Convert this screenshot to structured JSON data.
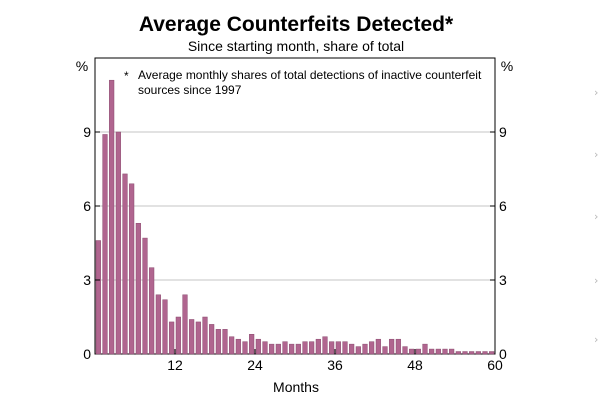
{
  "chart_data": {
    "type": "bar",
    "title": "Average Counterfeits Detected*",
    "subtitle": "Since starting month, share of total",
    "xlabel": "Months",
    "ylabel_left": "%",
    "ylabel_right": "%",
    "footnote_marker": "*",
    "footnote_line1": "Average monthly shares of total detections of inactive counterfeit",
    "footnote_line2": "sources since 1997",
    "xlim": [
      0,
      60
    ],
    "ylim": [
      0,
      12
    ],
    "x_ticks": [
      {
        "value": 12,
        "label": "12"
      },
      {
        "value": 24,
        "label": "24"
      },
      {
        "value": 36,
        "label": "36"
      },
      {
        "value": 48,
        "label": "48"
      },
      {
        "value": 60,
        "label": "60"
      }
    ],
    "y_ticks": [
      {
        "value": 0,
        "label": "0"
      },
      {
        "value": 3,
        "label": "3"
      },
      {
        "value": 6,
        "label": "6"
      },
      {
        "value": 9,
        "label": "9"
      }
    ],
    "gridlines": [
      3,
      6,
      9
    ],
    "bar_color": "#b0658f",
    "bar_edge_color": "#8a4a6e",
    "months": [
      1,
      2,
      3,
      4,
      5,
      6,
      7,
      8,
      9,
      10,
      11,
      12,
      13,
      14,
      15,
      16,
      17,
      18,
      19,
      20,
      21,
      22,
      23,
      24,
      25,
      26,
      27,
      28,
      29,
      30,
      31,
      32,
      33,
      34,
      35,
      36,
      37,
      38,
      39,
      40,
      41,
      42,
      43,
      44,
      45,
      46,
      47,
      48,
      49,
      50,
      51,
      52,
      53,
      54,
      55,
      56,
      57,
      58,
      59,
      60
    ],
    "values": [
      4.6,
      8.9,
      11.1,
      9.0,
      7.3,
      6.9,
      5.3,
      4.7,
      3.5,
      2.4,
      2.2,
      1.3,
      1.5,
      2.4,
      1.4,
      1.3,
      1.5,
      1.2,
      1.0,
      1.0,
      0.7,
      0.6,
      0.5,
      0.8,
      0.6,
      0.5,
      0.4,
      0.4,
      0.5,
      0.4,
      0.4,
      0.5,
      0.5,
      0.6,
      0.7,
      0.5,
      0.5,
      0.5,
      0.4,
      0.3,
      0.4,
      0.5,
      0.6,
      0.3,
      0.6,
      0.6,
      0.3,
      0.2,
      0.2,
      0.4,
      0.2,
      0.2,
      0.2,
      0.2,
      0.1,
      0.1,
      0.1,
      0.1,
      0.1,
      0.1
    ]
  },
  "side_nav": {
    "chevron_glyph": "›"
  }
}
